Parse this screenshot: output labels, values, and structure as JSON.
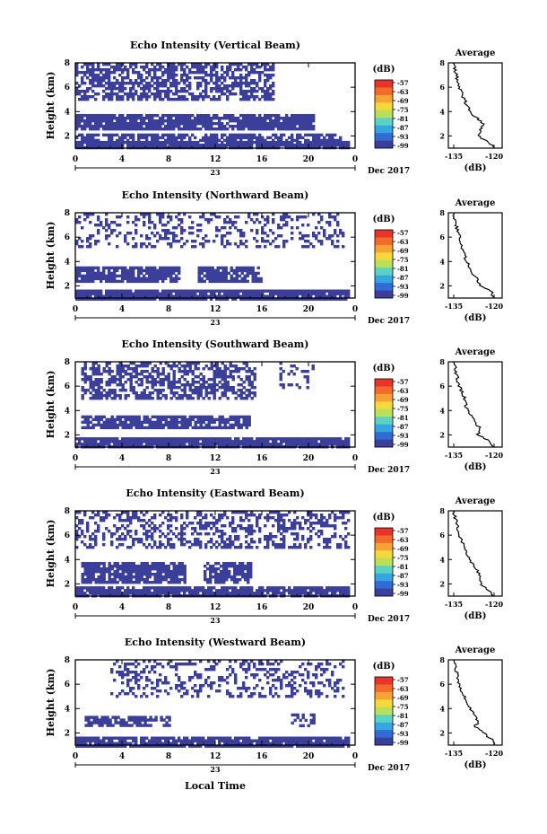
{
  "figure": {
    "xlabel": "Local Time",
    "date_label": "23",
    "month_label": "Dec 2017"
  },
  "colorbar": {
    "unit": "(dB)",
    "ticks": [
      "-57",
      "-63",
      "-69",
      "-75",
      "-81",
      "-87",
      "-93",
      "-99"
    ],
    "colors": [
      "#e8342a",
      "#f26b2a",
      "#f7a234",
      "#f5d93a",
      "#b8e05a",
      "#5ad3c5",
      "#35a6e2",
      "#2f6cd6",
      "#3b3f9a"
    ]
  },
  "profile": {
    "title": "Average",
    "xlabel": "(dB)",
    "xticks": [
      "-135",
      "-120"
    ],
    "yticks": [
      "2",
      "4",
      "6",
      "8"
    ]
  },
  "chart_data": [
    {
      "type": "heatmap",
      "title": "Echo Intensity (Vertical Beam)",
      "ylabel": "Height (km)",
      "x_range_hours": [
        0,
        24
      ],
      "x_ticks": [
        "0",
        "4",
        "8",
        "12",
        "16",
        "20",
        "0"
      ],
      "y_range_km": [
        1,
        8
      ],
      "y_ticks": [
        "2",
        "4",
        "6",
        "8"
      ],
      "color_scale_db": [
        -99,
        -57
      ],
      "echo_layers": [
        {
          "height_km": [
            1.0,
            1.6
          ],
          "time_h": [
            0,
            23.5
          ],
          "density": 0.95
        },
        {
          "height_km": [
            1.6,
            2.2
          ],
          "time_h": [
            0,
            23.0
          ],
          "density": 0.7
        },
        {
          "height_km": [
            2.5,
            3.8
          ],
          "time_h": [
            0,
            20.5
          ],
          "density": 0.88
        },
        {
          "height_km": [
            5.0,
            8.0
          ],
          "time_h": [
            0,
            17.0
          ],
          "density": 0.6
        }
      ],
      "average_profile_db": [
        [
          1.0,
          -120
        ],
        [
          1.5,
          -122
        ],
        [
          2.0,
          -126
        ],
        [
          3.0,
          -124
        ],
        [
          4.0,
          -129
        ],
        [
          5.0,
          -131
        ],
        [
          6.0,
          -133
        ],
        [
          7.0,
          -134
        ],
        [
          8.0,
          -135
        ]
      ]
    },
    {
      "type": "heatmap",
      "title": "Echo Intensity (Northward Beam)",
      "ylabel": "Height (km)",
      "x_range_hours": [
        0,
        24
      ],
      "x_ticks": [
        "0",
        "4",
        "8",
        "12",
        "16",
        "20",
        "0"
      ],
      "y_range_km": [
        1,
        8
      ],
      "y_ticks": [
        "2",
        "4",
        "6",
        "8"
      ],
      "color_scale_db": [
        -99,
        -57
      ],
      "echo_layers": [
        {
          "height_km": [
            1.0,
            1.7
          ],
          "time_h": [
            0,
            23.5
          ],
          "density": 0.95
        },
        {
          "height_km": [
            2.3,
            3.6
          ],
          "time_h": [
            0,
            9.0
          ],
          "density": 0.85
        },
        {
          "height_km": [
            2.3,
            3.6
          ],
          "time_h": [
            10.5,
            16.0
          ],
          "density": 0.8
        },
        {
          "height_km": [
            5.2,
            8.0
          ],
          "time_h": [
            0,
            23.0
          ],
          "density": 0.3
        }
      ],
      "average_profile_db": [
        [
          1.0,
          -120
        ],
        [
          1.5,
          -121
        ],
        [
          2.0,
          -125
        ],
        [
          2.5,
          -126
        ],
        [
          3.0,
          -128
        ],
        [
          4.0,
          -130
        ],
        [
          5.0,
          -132
        ],
        [
          6.0,
          -133
        ],
        [
          7.0,
          -134
        ],
        [
          8.0,
          -135
        ]
      ]
    },
    {
      "type": "heatmap",
      "title": "Echo Intensity (Southward Beam)",
      "ylabel": "Height (km)",
      "x_range_hours": [
        0,
        24
      ],
      "x_ticks": [
        "0",
        "4",
        "8",
        "12",
        "16",
        "20",
        "0"
      ],
      "y_range_km": [
        1,
        8
      ],
      "y_ticks": [
        "2",
        "4",
        "6",
        "8"
      ],
      "color_scale_db": [
        -99,
        -57
      ],
      "echo_layers": [
        {
          "height_km": [
            1.0,
            1.8
          ],
          "time_h": [
            0,
            23.5
          ],
          "density": 0.95
        },
        {
          "height_km": [
            2.5,
            3.6
          ],
          "time_h": [
            0.5,
            15.0
          ],
          "density": 0.8
        },
        {
          "height_km": [
            5.0,
            8.0
          ],
          "time_h": [
            0.5,
            15.5
          ],
          "density": 0.55
        },
        {
          "height_km": [
            6.0,
            8.0
          ],
          "time_h": [
            17.5,
            20.5
          ],
          "density": 0.2
        }
      ],
      "average_profile_db": [
        [
          1.0,
          -120
        ],
        [
          1.5,
          -122
        ],
        [
          2.0,
          -126
        ],
        [
          2.5,
          -125
        ],
        [
          3.0,
          -127
        ],
        [
          4.0,
          -130
        ],
        [
          5.0,
          -131
        ],
        [
          6.0,
          -133
        ],
        [
          7.0,
          -134
        ],
        [
          8.0,
          -135
        ]
      ]
    },
    {
      "type": "heatmap",
      "title": "Echo Intensity (Eastward Beam)",
      "ylabel": "Height (km)",
      "x_range_hours": [
        0,
        24
      ],
      "x_ticks": [
        "0",
        "4",
        "8",
        "12",
        "16",
        "20",
        "0"
      ],
      "y_range_km": [
        1,
        8
      ],
      "y_ticks": [
        "2",
        "4",
        "6",
        "8"
      ],
      "color_scale_db": [
        -99,
        -57
      ],
      "echo_layers": [
        {
          "height_km": [
            1.0,
            1.8
          ],
          "time_h": [
            0,
            23.5
          ],
          "density": 0.9
        },
        {
          "height_km": [
            2.2,
            3.8
          ],
          "time_h": [
            0.5,
            9.5
          ],
          "density": 0.85
        },
        {
          "height_km": [
            2.2,
            3.8
          ],
          "time_h": [
            11.0,
            15.0
          ],
          "density": 0.8
        },
        {
          "height_km": [
            5.0,
            8.0
          ],
          "time_h": [
            0,
            23.5
          ],
          "density": 0.4
        }
      ],
      "average_profile_db": [
        [
          1.0,
          -120
        ],
        [
          1.5,
          -122
        ],
        [
          2.0,
          -125
        ],
        [
          3.0,
          -126
        ],
        [
          4.0,
          -129
        ],
        [
          5.0,
          -131
        ],
        [
          6.0,
          -133
        ],
        [
          7.0,
          -134
        ],
        [
          8.0,
          -135
        ]
      ]
    },
    {
      "type": "heatmap",
      "title": "Echo Intensity (Westward Beam)",
      "ylabel": "Height (km)",
      "x_range_hours": [
        0,
        24
      ],
      "x_ticks": [
        "0",
        "4",
        "8",
        "12",
        "16",
        "20",
        "0"
      ],
      "y_range_km": [
        1,
        8
      ],
      "y_ticks": [
        "2",
        "4",
        "6",
        "8"
      ],
      "color_scale_db": [
        -99,
        -57
      ],
      "echo_layers": [
        {
          "height_km": [
            1.0,
            1.7
          ],
          "time_h": [
            0,
            23.5
          ],
          "density": 0.9
        },
        {
          "height_km": [
            2.6,
            3.4
          ],
          "time_h": [
            0.8,
            8.0
          ],
          "density": 0.7
        },
        {
          "height_km": [
            2.6,
            3.6
          ],
          "time_h": [
            18.5,
            20.5
          ],
          "density": 0.5
        },
        {
          "height_km": [
            5.0,
            8.0
          ],
          "time_h": [
            3.0,
            23.0
          ],
          "density": 0.3
        }
      ],
      "average_profile_db": [
        [
          1.0,
          -120
        ],
        [
          1.5,
          -121
        ],
        [
          2.0,
          -124
        ],
        [
          2.5,
          -127
        ],
        [
          3.0,
          -126
        ],
        [
          4.0,
          -129
        ],
        [
          5.0,
          -131
        ],
        [
          6.0,
          -133
        ],
        [
          7.0,
          -134
        ],
        [
          8.0,
          -135
        ]
      ]
    }
  ]
}
